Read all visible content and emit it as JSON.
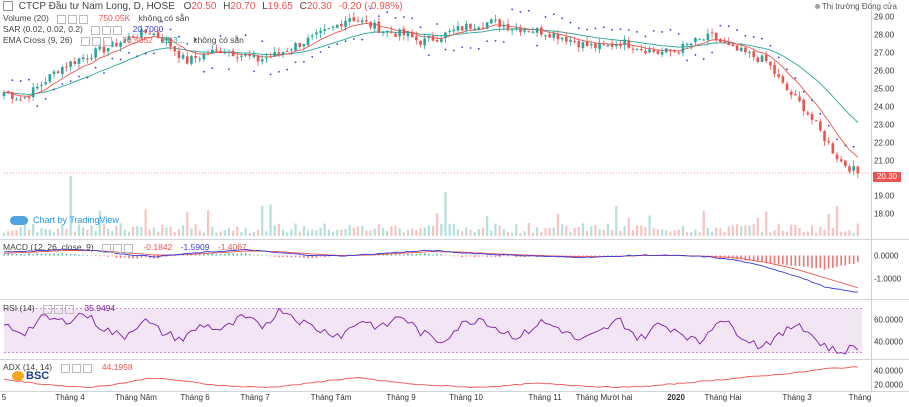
{
  "header": {
    "symbol_title": "CTCP Đầu tư Nam Long, D, HOSE",
    "open_label": "O",
    "open": "20.50",
    "high_label": "H",
    "high": "20.70",
    "low_label": "L",
    "low": "19.65",
    "close_label": "C",
    "close": "20.30",
    "change": "-0.20 (-0.98%)",
    "market_status": "Thị trường Đóng cửa"
  },
  "legends": {
    "volume": {
      "name": "Volume (20)",
      "value": "750.05K",
      "value2": "không có sẵn"
    },
    "sar": {
      "name": "SAR (0.02, 0.02, 0.2)",
      "value": "20.7000"
    },
    "ema": {
      "name": "EMA Cross (9, 26)",
      "value": "20.5852",
      "value2": "21.3...",
      "value3": "không có sẵn"
    },
    "macd": {
      "name": "MACD (12, 26, close, 9)",
      "v1": "-0.1842",
      "v2": "-1.5909",
      "v3": "-1.4067"
    },
    "rsi": {
      "name": "RSI (14)",
      "value": "35.9494"
    },
    "adx": {
      "name": "ADX (14, 14)",
      "value": "44.1958"
    }
  },
  "watermark": {
    "tradingview": "Chart by TradingView",
    "bsc": "BSC"
  },
  "current_price_box": "20.30",
  "colors": {
    "up": "#26a69a",
    "down": "#ef5350",
    "sar": "#3b3bd6",
    "ema_fast": "#ef5350",
    "ema_slow": "#26a69a",
    "macd": "#3b3bd6",
    "signal": "#ef5350",
    "rsi": "#7b1fa2",
    "adx": "#ef5350"
  },
  "chart_data": [
    {
      "type": "candlestick",
      "title": "CTCP Đầu tư Nam Long, D, HOSE",
      "x": [
        "5",
        "Tháng 4",
        "Tháng Năm",
        "Tháng 6",
        "Tháng 7",
        "Tháng Tám",
        "Tháng 9",
        "Tháng 10",
        "Tháng 11",
        "Tháng Mười hai",
        "2020",
        "Tháng Hai",
        "Tháng 3",
        "Tháng"
      ],
      "close_path": [
        24.8,
        24.4,
        25.2,
        26.1,
        26.6,
        27.0,
        27.4,
        27.9,
        28.2,
        27.6,
        26.5,
        26.9,
        27.2,
        26.9,
        26.6,
        26.9,
        27.4,
        27.8,
        28.3,
        29.0,
        28.6,
        28.2,
        28.0,
        27.6,
        27.9,
        28.3,
        28.6,
        28.7,
        28.4,
        28.3,
        28.1,
        27.8,
        27.4,
        27.3,
        27.6,
        27.3,
        27.0,
        27.1,
        27.6,
        27.9,
        27.2,
        26.9,
        26.5,
        25.0,
        24.0,
        22.5,
        21.0,
        20.3
      ],
      "ylim": [
        16.8,
        29.6
      ],
      "y_ticks": [
        "29.00",
        "28.00",
        "27.00",
        "26.00",
        "25.00",
        "24.00",
        "23.00",
        "22.00",
        "21.00",
        "20.00",
        "19.00",
        "18.00"
      ],
      "series": [
        "EMA 9",
        "EMA 26",
        "SAR",
        "Volume"
      ]
    },
    {
      "type": "line",
      "title": "MACD (12, 26, close, 9)",
      "y_ticks": [
        "0.0000",
        "-1.0000"
      ],
      "ylim": [
        -1.8,
        0.5
      ],
      "macd_path": [
        0.15,
        0.2,
        0.28,
        0.22,
        0.05,
        -0.05,
        0.08,
        0.18,
        0.25,
        0.12,
        0.02,
        -0.02,
        0.05,
        0.15,
        0.22,
        0.12,
        0.05,
        0.0,
        -0.05,
        -0.08,
        -0.04,
        0.02,
        0.0,
        -0.05,
        -0.2,
        -0.5,
        -0.9,
        -1.4,
        -1.6
      ],
      "signal_path": [
        0.1,
        0.15,
        0.22,
        0.22,
        0.12,
        0.02,
        0.04,
        0.12,
        0.2,
        0.17,
        0.08,
        0.0,
        0.02,
        0.1,
        0.17,
        0.15,
        0.08,
        0.03,
        -0.02,
        -0.05,
        -0.04,
        0.0,
        0.0,
        -0.03,
        -0.1,
        -0.3,
        -0.6,
        -1.0,
        -1.4
      ]
    },
    {
      "type": "line",
      "title": "RSI (14)",
      "y_ticks": [
        "60.0000",
        "40.0000"
      ],
      "band": [
        30,
        70
      ],
      "ylim": [
        26,
        76
      ],
      "rsi_path": [
        55,
        48,
        62,
        58,
        66,
        52,
        44,
        60,
        48,
        42,
        56,
        50,
        62,
        54,
        70,
        58,
        50,
        46,
        60,
        52,
        64,
        48,
        40,
        55,
        62,
        50,
        44,
        58,
        52,
        40,
        48,
        60,
        42,
        56,
        50,
        38,
        62,
        48,
        36,
        44,
        58,
        40,
        30,
        36
      ]
    },
    {
      "type": "line",
      "title": "ADX (14, 14)",
      "y_ticks": [
        "40.0000",
        "20.0000"
      ],
      "ylim": [
        12,
        52
      ],
      "adx_path": [
        28,
        22,
        18,
        16,
        22,
        30,
        26,
        20,
        17,
        16,
        20,
        26,
        30,
        25,
        20,
        18,
        16,
        18,
        22,
        20,
        17,
        16,
        18,
        22,
        26,
        30,
        34,
        38,
        44,
        46
      ]
    }
  ]
}
